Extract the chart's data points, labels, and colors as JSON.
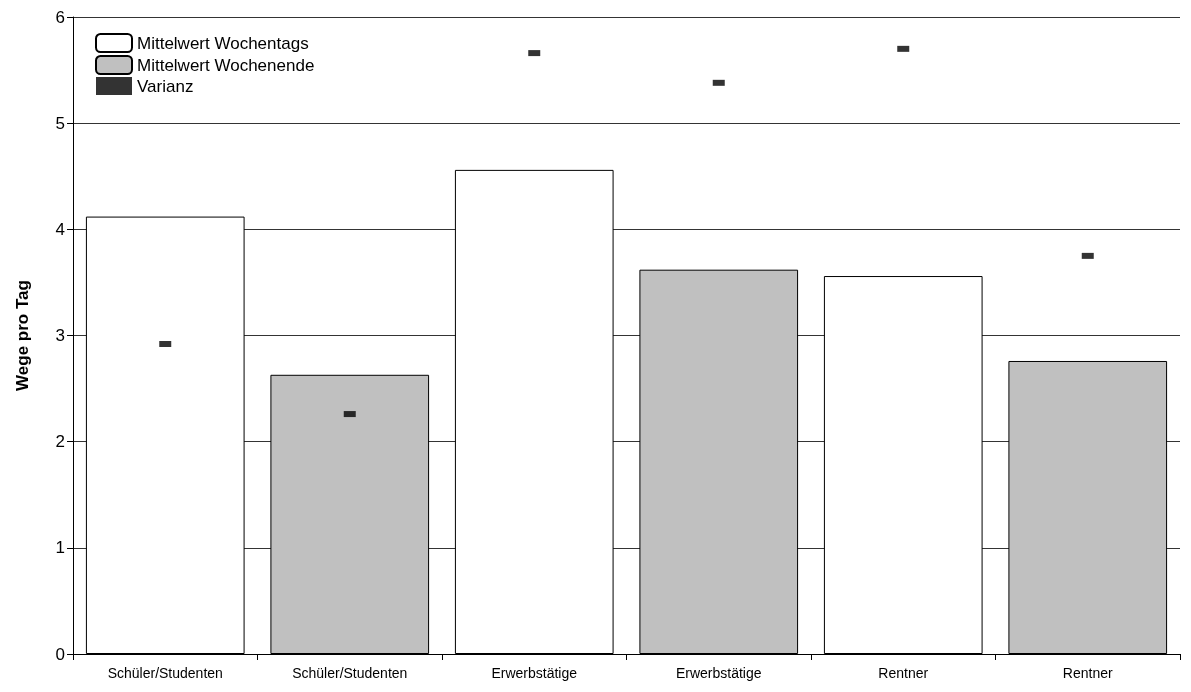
{
  "chart_data": {
    "type": "bar",
    "ylabel": "Wege pro Tag",
    "categories": [
      "Schüler/Studenten",
      "Schüler/Studenten",
      "Erwerbstätige",
      "Erwerbstätige",
      "Rentner",
      "Rentner"
    ],
    "series": [
      {
        "name": "Mittelwert Wochentags",
        "color": "#ffffff",
        "values": [
          4.12,
          null,
          4.56,
          null,
          3.56,
          null
        ]
      },
      {
        "name": "Mittelwert Wochenende",
        "color": "#c0c0c0",
        "values": [
          null,
          2.63,
          null,
          3.62,
          null,
          2.76
        ]
      },
      {
        "name": "Varianz",
        "type": "scatter",
        "marker": "square",
        "color": "#000000",
        "values": [
          2.92,
          2.26,
          5.66,
          5.38,
          5.7,
          3.75
        ]
      }
    ],
    "ylim": [
      0,
      6
    ],
    "yticks": [
      0,
      1,
      2,
      3,
      4,
      5,
      6
    ],
    "grid": "y",
    "legend": "top left"
  }
}
